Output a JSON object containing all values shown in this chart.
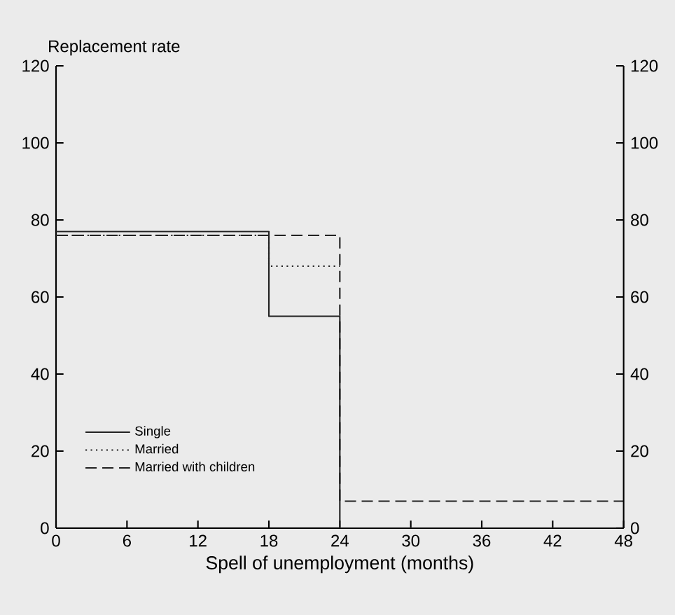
{
  "chart_data": {
    "type": "step",
    "ylabel": "Replacement rate",
    "xlabel": "Spell of unemployment (months)",
    "series": [
      {
        "name": "Single",
        "color": "#222222",
        "line_style": "solid",
        "x": [
          0,
          18,
          24,
          48
        ],
        "values": [
          77,
          55,
          0,
          0
        ]
      },
      {
        "name": "Married",
        "color": "#222222",
        "line_style": "dotted",
        "x": [
          0,
          18,
          24
        ],
        "values": [
          76,
          68,
          68
        ]
      },
      {
        "name": "Married with children",
        "color": "#222222",
        "line_style": "dashed",
        "x": [
          0,
          24,
          48
        ],
        "values": [
          76,
          7,
          7
        ]
      }
    ],
    "xlim": [
      0,
      48
    ],
    "xticks": [
      0,
      6,
      12,
      18,
      24,
      30,
      36,
      42,
      48
    ],
    "ylim": [
      0,
      120
    ],
    "yticks": [
      0,
      20,
      40,
      60,
      80,
      100,
      120
    ],
    "y2lim": [
      0,
      120
    ],
    "y2ticks": [
      0,
      20,
      40,
      60,
      80,
      100,
      120
    ],
    "legend": "bottom left",
    "grid": false
  }
}
